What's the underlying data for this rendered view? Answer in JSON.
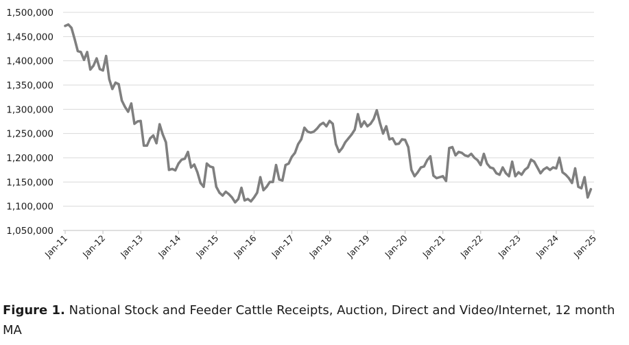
{
  "caption": {
    "label": "Figure 1.",
    "text": " National Stock and Feeder Cattle Receipts, Auction, Direct and Video/Internet, 12 month MA"
  },
  "colors": {
    "line": "#7f7f7f"
  },
  "chart_data": {
    "type": "line",
    "title": "",
    "xlabel": "",
    "ylabel": "",
    "ylim": [
      1050000,
      1500000
    ],
    "yticks": [
      1050000,
      1100000,
      1150000,
      1200000,
      1250000,
      1300000,
      1350000,
      1400000,
      1450000,
      1500000
    ],
    "ytick_labels": [
      "1,050,000",
      "1,100,000",
      "1,150,000",
      "1,200,000",
      "1,250,000",
      "1,300,000",
      "1,350,000",
      "1,400,000",
      "1,450,000",
      "1,500,000"
    ],
    "xtick_labels": [
      "Jan-11",
      "Jan-12",
      "Jan-13",
      "Jan-14",
      "Jan-15",
      "Jan-16",
      "Jan-17",
      "Jan-18",
      "Jan-19",
      "Jan-20",
      "Jan-21",
      "Jan-22",
      "Jan-23",
      "Jan-24",
      "Jan-25"
    ],
    "x_start": "Jan-11",
    "x_step": "month",
    "grid": true,
    "series": [
      {
        "name": "12 month MA",
        "values": [
          1472000,
          1475000,
          1468000,
          1445000,
          1420000,
          1418000,
          1402000,
          1418000,
          1382000,
          1390000,
          1405000,
          1383000,
          1380000,
          1410000,
          1362000,
          1342000,
          1355000,
          1352000,
          1318000,
          1305000,
          1295000,
          1312000,
          1270000,
          1275000,
          1276000,
          1225000,
          1225000,
          1240000,
          1246000,
          1230000,
          1269000,
          1248000,
          1232000,
          1175000,
          1177000,
          1174000,
          1188000,
          1196000,
          1198000,
          1212000,
          1180000,
          1186000,
          1170000,
          1148000,
          1140000,
          1188000,
          1182000,
          1180000,
          1140000,
          1128000,
          1122000,
          1130000,
          1125000,
          1118000,
          1108000,
          1115000,
          1138000,
          1112000,
          1115000,
          1110000,
          1118000,
          1128000,
          1160000,
          1133000,
          1140000,
          1150000,
          1150000,
          1185000,
          1155000,
          1153000,
          1185000,
          1188000,
          1202000,
          1210000,
          1228000,
          1238000,
          1262000,
          1254000,
          1252000,
          1254000,
          1260000,
          1268000,
          1272000,
          1265000,
          1276000,
          1270000,
          1228000,
          1212000,
          1220000,
          1232000,
          1240000,
          1248000,
          1258000,
          1290000,
          1264000,
          1275000,
          1265000,
          1270000,
          1280000,
          1298000,
          1272000,
          1250000,
          1265000,
          1238000,
          1240000,
          1228000,
          1229000,
          1238000,
          1237000,
          1222000,
          1175000,
          1162000,
          1170000,
          1180000,
          1182000,
          1195000,
          1203000,
          1163000,
          1158000,
          1160000,
          1162000,
          1152000,
          1220000,
          1222000,
          1205000,
          1212000,
          1210000,
          1205000,
          1203000,
          1208000,
          1200000,
          1195000,
          1185000,
          1208000,
          1188000,
          1180000,
          1178000,
          1168000,
          1165000,
          1180000,
          1168000,
          1162000,
          1192000,
          1162000,
          1170000,
          1165000,
          1175000,
          1180000,
          1196000,
          1192000,
          1180000,
          1168000,
          1176000,
          1180000,
          1175000,
          1180000,
          1178000,
          1200000,
          1170000,
          1165000,
          1158000,
          1148000,
          1178000,
          1140000,
          1137000,
          1160000,
          1118000,
          1135000
        ]
      }
    ]
  }
}
